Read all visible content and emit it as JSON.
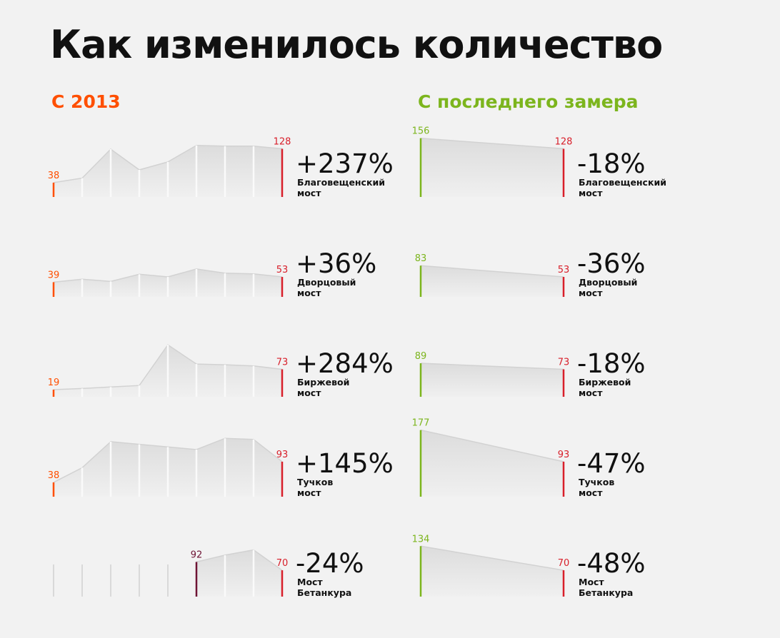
{
  "title": "Как изменилось количество",
  "sections": {
    "left": {
      "label": "С 2013",
      "color": "#ff4f00"
    },
    "right": {
      "label": "С последнего замера",
      "color": "#7cb51d"
    }
  },
  "colors": {
    "end_line": "#d81f2a",
    "first_measure": "#6e1334",
    "area_fill": "#dcdcdc",
    "divider": "#fafafa",
    "ghost_line": "#d9d9d9"
  },
  "chart_data": [
    {
      "type": "area",
      "title": "С 2013",
      "series": [
        {
          "name": "Благовещенский мост",
          "values": [
            38,
            50,
            127,
            72,
            93,
            137,
            135,
            135,
            128
          ],
          "first_label": "38",
          "last_label": "128",
          "change": "+237%"
        },
        {
          "name": "Дворцовый мост",
          "values": [
            39,
            47,
            41,
            60,
            53,
            74,
            63,
            61,
            53
          ],
          "first_label": "39",
          "last_label": "53",
          "change": "+36%"
        },
        {
          "name": "Биржевой мост",
          "values": [
            19,
            22,
            26,
            30,
            138,
            87,
            85,
            82,
            73
          ],
          "first_label": "19",
          "last_label": "73",
          "change": "+284%"
        },
        {
          "name": "Тучков мост",
          "values": [
            38,
            77,
            146,
            139,
            132,
            125,
            155,
            152,
            93
          ],
          "first_label": "38",
          "last_label": "93",
          "change": "+145%"
        },
        {
          "name": "Мост Бетанкура",
          "values": [
            null,
            null,
            null,
            null,
            null,
            92,
            110,
            124,
            70
          ],
          "first_label": "92",
          "last_label": "70",
          "change": "-24%"
        }
      ]
    },
    {
      "type": "area",
      "title": "С последнего замера",
      "series": [
        {
          "name": "Благовещенский мост",
          "values": [
            156,
            128
          ],
          "first_label": "156",
          "last_label": "128",
          "change": "-18%"
        },
        {
          "name": "Дворцовый мост",
          "values": [
            83,
            53
          ],
          "first_label": "83",
          "last_label": "53",
          "change": "-36%"
        },
        {
          "name": "Биржевой мост",
          "values": [
            89,
            73
          ],
          "first_label": "89",
          "last_label": "73",
          "change": "-18%"
        },
        {
          "name": "Тучков мост",
          "values": [
            177,
            93
          ],
          "first_label": "177",
          "last_label": "93",
          "change": "-47%"
        },
        {
          "name": "Мост Бетанкура",
          "values": [
            134,
            70
          ],
          "first_label": "134",
          "last_label": "70",
          "change": "-48%"
        }
      ]
    }
  ]
}
